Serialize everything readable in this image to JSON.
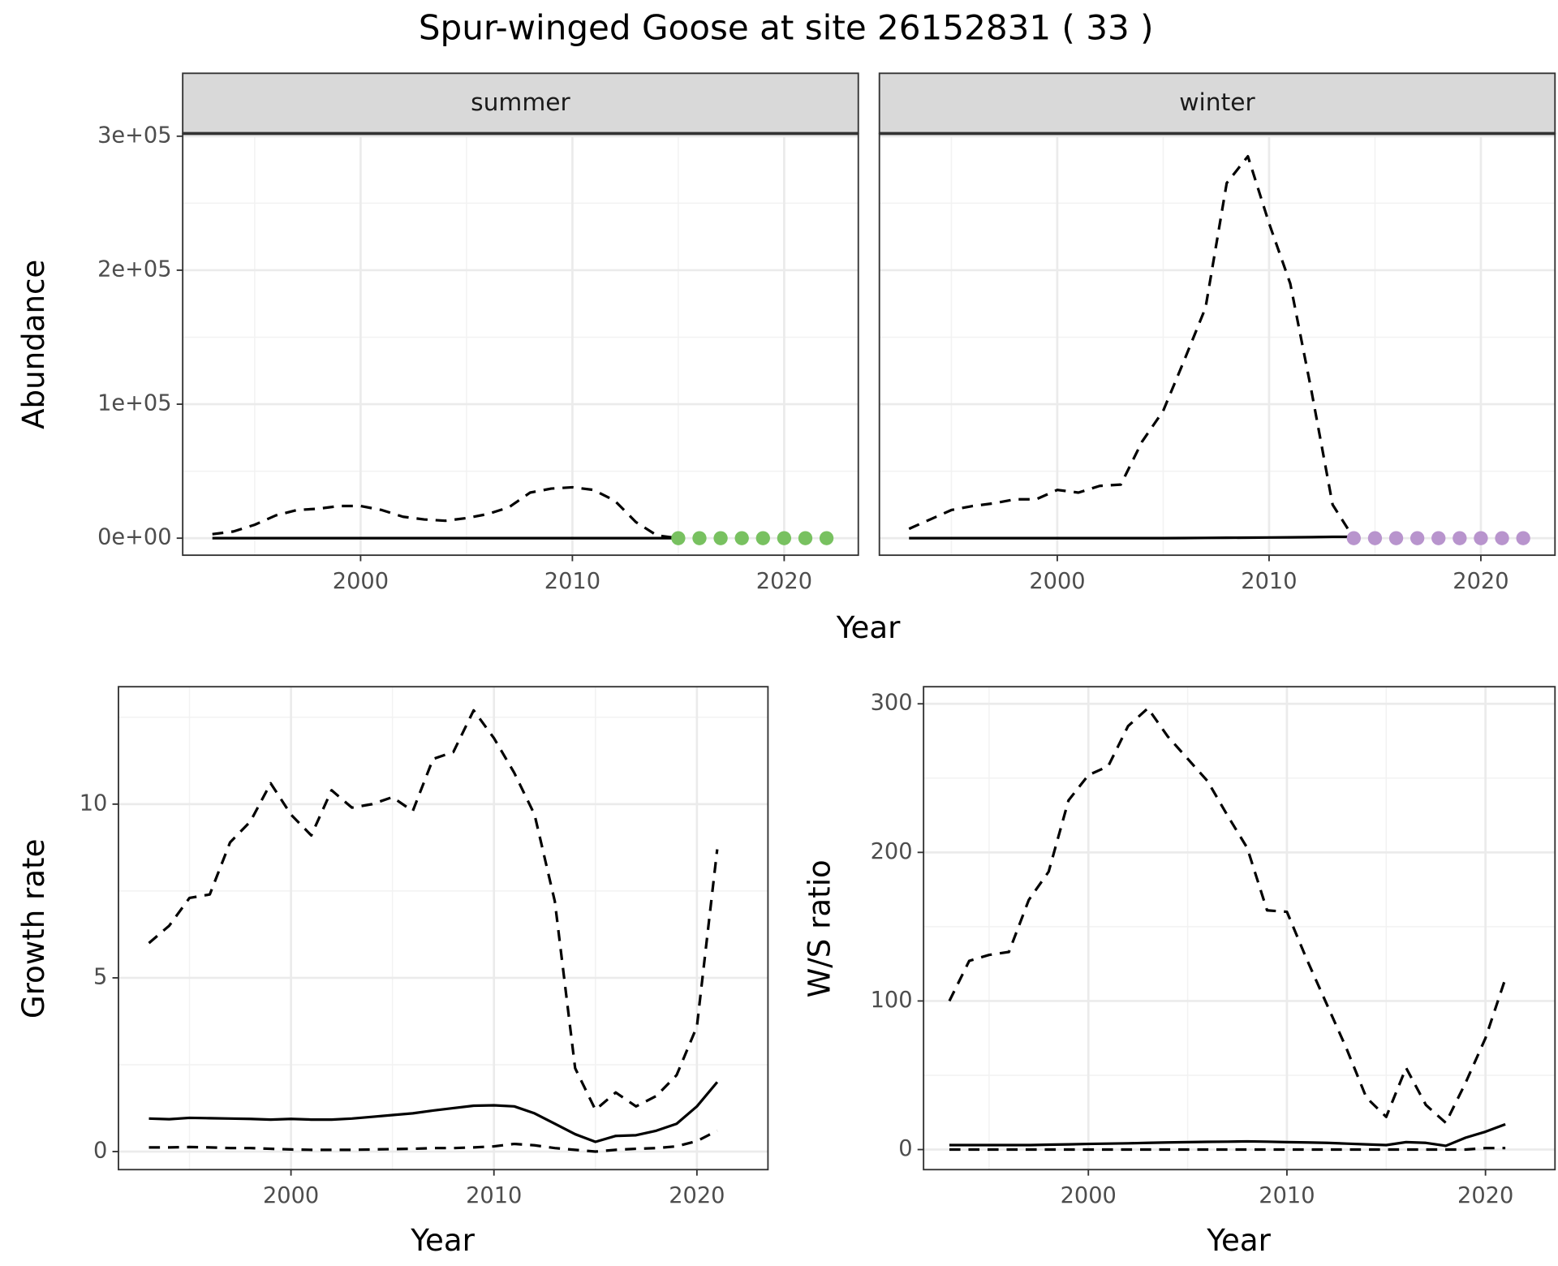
{
  "title": "Spur-winged Goose at site 26152831 ( 33 )",
  "chart_data": [
    {
      "type": "line",
      "panel_title": "summer",
      "xlabel": "Year",
      "ylabel": "Abundance",
      "xlim": [
        1991.6,
        2023.5
      ],
      "ylim": [
        -12700,
        302000
      ],
      "xticks": [
        2000,
        2010,
        2020
      ],
      "yticks": [
        {
          "value": 0,
          "label": "0e+00"
        },
        {
          "value": 100000,
          "label": "1e+05"
        },
        {
          "value": 200000,
          "label": "2e+05"
        },
        {
          "value": 300000,
          "label": "3e+05"
        }
      ],
      "grid": true,
      "minor_grid": true,
      "series": [
        {
          "linestyle": "dashed",
          "color": "#000000",
          "x": [
            1993,
            1994,
            1995,
            1996,
            1997,
            1998,
            1999,
            2000,
            2001,
            2002,
            2003,
            2004,
            2005,
            2006,
            2007,
            2008,
            2009,
            2010,
            2011,
            2012,
            2013,
            2014,
            2015
          ],
          "values": [
            3000,
            5000,
            10000,
            17000,
            21000,
            22000,
            24000,
            24000,
            21000,
            16000,
            14000,
            13000,
            15000,
            18000,
            23000,
            34000,
            37000,
            38000,
            36000,
            28000,
            12000,
            2000,
            0
          ]
        },
        {
          "linestyle": "solid",
          "color": "#000000",
          "x": [
            1993,
            1994,
            1995,
            1996,
            1997,
            1998,
            1999,
            2000,
            2001,
            2002,
            2003,
            2004,
            2005,
            2006,
            2007,
            2008,
            2009,
            2010,
            2011,
            2012,
            2013,
            2014,
            2015
          ],
          "values": [
            0,
            0,
            0,
            0,
            0,
            0,
            0,
            0,
            0,
            0,
            0,
            0,
            0,
            0,
            0,
            0,
            0,
            0,
            0,
            0,
            0,
            0,
            0
          ]
        },
        {
          "marker": "point",
          "color": "#78c160",
          "x": [
            2015,
            2016,
            2017,
            2018,
            2019,
            2020,
            2021,
            2022
          ],
          "values": [
            0,
            0,
            0,
            0,
            0,
            0,
            0,
            0
          ]
        }
      ]
    },
    {
      "type": "line",
      "panel_title": "winter",
      "sharey": true,
      "xlim": [
        1991.6,
        2023.5
      ],
      "xticks": [
        2000,
        2010,
        2020
      ],
      "grid": true,
      "minor_grid": true,
      "series": [
        {
          "linestyle": "dashed",
          "color": "#000000",
          "x": [
            1993,
            1994,
            1995,
            1996,
            1997,
            1998,
            1999,
            2000,
            2001,
            2002,
            2003,
            2004,
            2005,
            2006,
            2007,
            2008,
            2009,
            2010,
            2011,
            2012,
            2013,
            2014
          ],
          "values": [
            7000,
            14000,
            21000,
            24000,
            26000,
            29000,
            29000,
            36000,
            34000,
            39000,
            40000,
            72000,
            95000,
            133000,
            172000,
            265000,
            285000,
            235000,
            190000,
            110000,
            25000,
            0
          ]
        },
        {
          "linestyle": "solid",
          "color": "#000000",
          "x": [
            1993,
            1994,
            1995,
            1996,
            1997,
            1998,
            1999,
            2000,
            2001,
            2002,
            2003,
            2004,
            2005,
            2006,
            2007,
            2008,
            2009,
            2010,
            2011,
            2012,
            2013,
            2014
          ],
          "values": [
            0,
            0,
            0,
            0,
            0,
            0,
            0,
            0,
            0,
            0,
            0,
            0,
            0,
            100,
            200,
            300,
            400,
            500,
            600,
            800,
            1000,
            1000
          ]
        },
        {
          "marker": "point",
          "color": "#b894cd",
          "x": [
            2014,
            2015,
            2016,
            2017,
            2018,
            2019,
            2020,
            2021,
            2022
          ],
          "values": [
            0,
            0,
            0,
            0,
            0,
            0,
            0,
            0,
            0
          ]
        }
      ]
    },
    {
      "type": "line",
      "xlabel": "Year",
      "ylabel": "Growth rate",
      "xlim": [
        1991.5,
        2023.5
      ],
      "ylim": [
        -0.52,
        13.38
      ],
      "xticks": [
        2000,
        2010,
        2020
      ],
      "yticks": [
        0,
        5,
        10
      ],
      "grid": true,
      "minor_grid": true,
      "x": [
        1993,
        1994,
        1995,
        1996,
        1997,
        1998,
        1999,
        2000,
        2001,
        2002,
        2003,
        2004,
        2005,
        2006,
        2007,
        2008,
        2009,
        2010,
        2011,
        2012,
        2013,
        2014,
        2015,
        2016,
        2017,
        2018,
        2019,
        2020,
        2021
      ],
      "series": [
        {
          "linestyle": "dashed",
          "color": "#000000",
          "values": [
            6.0,
            6.5,
            7.3,
            7.4,
            8.9,
            9.5,
            10.6,
            9.7,
            9.1,
            10.4,
            9.9,
            10.0,
            10.2,
            9.8,
            11.3,
            11.5,
            12.7,
            11.9,
            10.9,
            9.7,
            7.2,
            2.4,
            1.2,
            1.7,
            1.3,
            1.6,
            2.2,
            3.6,
            8.7
          ]
        },
        {
          "linestyle": "solid",
          "color": "#000000",
          "values": [
            0.95,
            0.93,
            0.97,
            0.96,
            0.95,
            0.94,
            0.92,
            0.94,
            0.92,
            0.92,
            0.95,
            1.0,
            1.05,
            1.1,
            1.18,
            1.25,
            1.32,
            1.33,
            1.3,
            1.1,
            0.8,
            0.5,
            0.28,
            0.45,
            0.47,
            0.6,
            0.8,
            1.3,
            2.0
          ]
        },
        {
          "linestyle": "dashed",
          "color": "#000000",
          "values": [
            0.12,
            0.12,
            0.13,
            0.12,
            0.1,
            0.1,
            0.08,
            0.06,
            0.05,
            0.05,
            0.05,
            0.06,
            0.07,
            0.08,
            0.1,
            0.1,
            0.12,
            0.15,
            0.22,
            0.18,
            0.1,
            0.05,
            0.0,
            0.05,
            0.08,
            0.1,
            0.15,
            0.3,
            0.6
          ]
        }
      ]
    },
    {
      "type": "line",
      "xlabel": "Year",
      "ylabel": "W/S ratio",
      "xlim": [
        1991.7,
        2023.5
      ],
      "ylim": [
        -13.5,
        311.5
      ],
      "xticks": [
        2000,
        2010,
        2020
      ],
      "yticks": [
        0,
        100,
        200,
        300
      ],
      "grid": true,
      "minor_grid": true,
      "x": [
        1993,
        1994,
        1995,
        1996,
        1997,
        1998,
        1999,
        2000,
        2001,
        2002,
        2003,
        2004,
        2005,
        2006,
        2007,
        2008,
        2009,
        2010,
        2011,
        2012,
        2013,
        2014,
        2015,
        2016,
        2017,
        2018,
        2019,
        2020,
        2021
      ],
      "series": [
        {
          "linestyle": "dashed",
          "color": "#000000",
          "values": [
            100,
            127,
            131,
            133,
            168,
            187,
            235,
            252,
            258,
            285,
            297,
            278,
            263,
            248,
            225,
            203,
            161,
            160,
            128,
            98,
            68,
            35,
            22,
            55,
            30,
            18,
            45,
            75,
            115
          ]
        },
        {
          "linestyle": "solid",
          "color": "#000000",
          "values": [
            3,
            3,
            3,
            3,
            3,
            3.3,
            3.5,
            3.8,
            4,
            4.2,
            4.5,
            4.8,
            5,
            5.2,
            5.3,
            5.5,
            5.3,
            5,
            4.8,
            4.5,
            4,
            3.5,
            3,
            5,
            4.5,
            2.5,
            8,
            12,
            17
          ]
        },
        {
          "linestyle": "dashed",
          "color": "#000000",
          "values": [
            0,
            0,
            0,
            0,
            0,
            0,
            0,
            0,
            0,
            0,
            0,
            0,
            0,
            0,
            0,
            0,
            0,
            0,
            0,
            0,
            0,
            0,
            0,
            0,
            0,
            0,
            0,
            1,
            1
          ]
        }
      ]
    }
  ]
}
